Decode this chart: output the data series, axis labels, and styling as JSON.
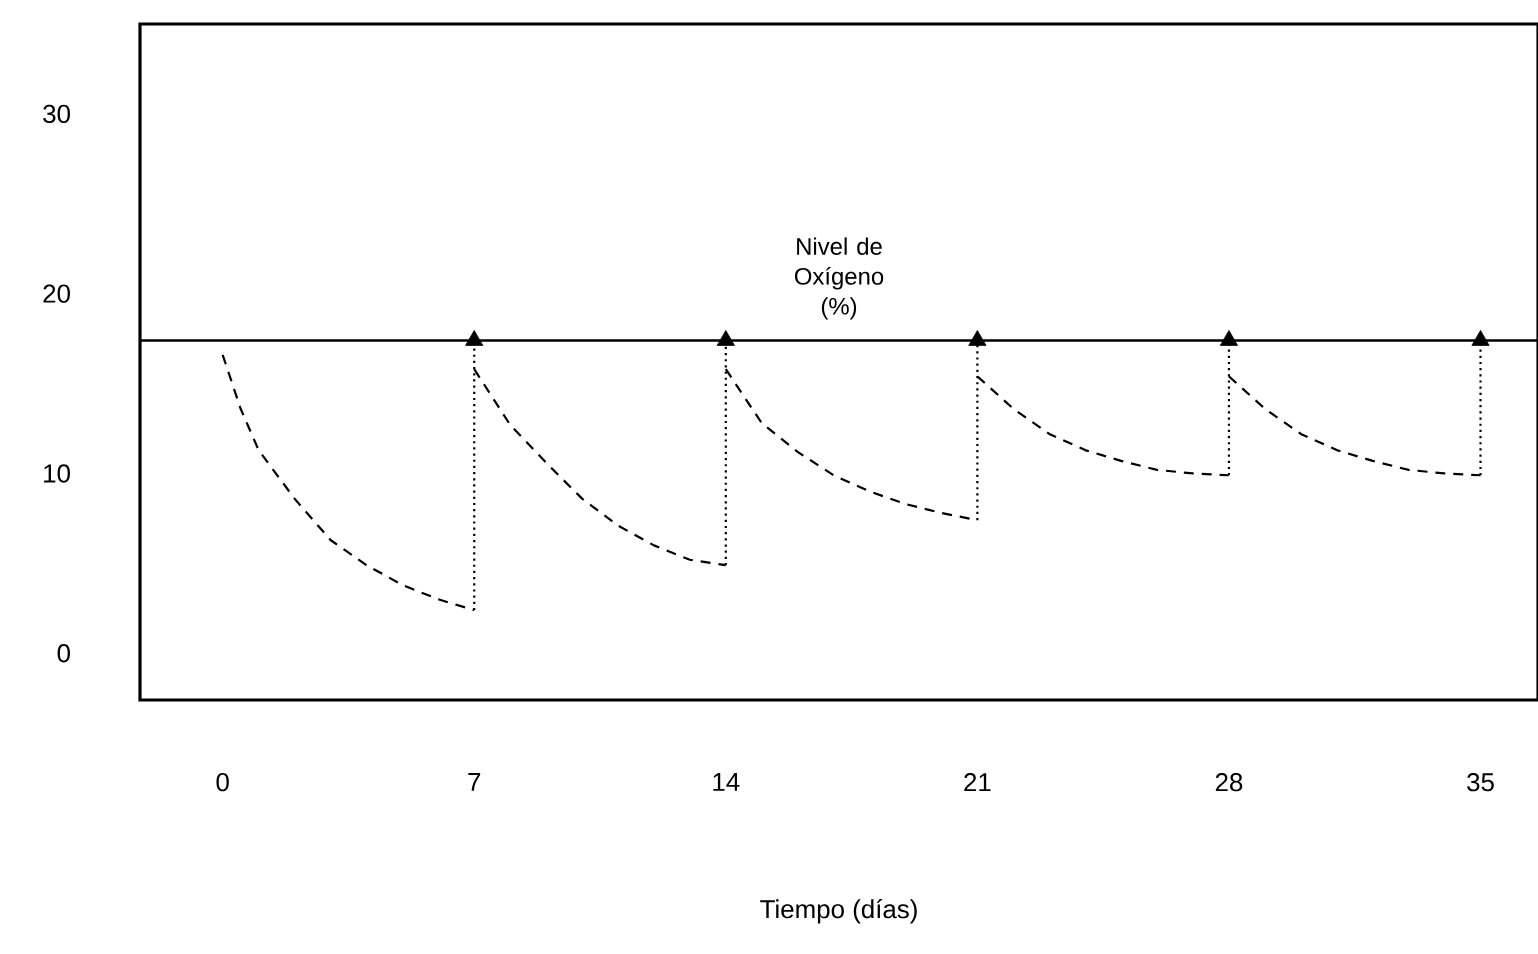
{
  "chart_data": {
    "type": "line",
    "xlabel": "Tiempo (días)",
    "xlim": [
      -2.3,
      36.6
    ],
    "xticks": [
      0,
      7,
      14,
      21,
      28,
      35
    ],
    "ylim": [
      -2.6,
      35
    ],
    "yticks": [
      0,
      10,
      20,
      30
    ],
    "series": [
      {
        "color": "#000000",
        "line_style": "dashed",
        "marker": "none",
        "x": [
          0,
          0.5,
          1,
          2,
          3,
          4,
          5,
          6,
          7,
          null,
          7,
          8,
          9,
          10,
          11,
          12,
          13,
          14,
          null,
          14,
          15,
          16,
          17,
          18,
          19,
          20,
          21,
          null,
          21,
          22,
          23,
          24,
          25,
          26,
          27,
          28,
          null,
          28,
          29,
          30,
          31,
          32,
          33,
          34,
          35
        ],
        "values": [
          16.6,
          13.6,
          11.3,
          8.6,
          6.3,
          4.9,
          3.8,
          3.0,
          2.4,
          null,
          15.8,
          12.7,
          10.6,
          8.6,
          7.1,
          6.0,
          5.2,
          4.9,
          null,
          15.8,
          12.8,
          11.2,
          9.9,
          9.0,
          8.3,
          7.8,
          7.4,
          null,
          15.4,
          13.6,
          12.2,
          11.3,
          10.7,
          10.2,
          10.0,
          9.9,
          null,
          15.4,
          13.6,
          12.2,
          11.3,
          10.7,
          10.2,
          10.0,
          9.9
        ]
      },
      {
        "color": "#000000",
        "line_style": "dotted",
        "marker": "none",
        "x": [
          7,
          7,
          null,
          14,
          14,
          null,
          21,
          21,
          null,
          28,
          28,
          null,
          35,
          35
        ],
        "values": [
          2.4,
          17.4,
          null,
          4.9,
          17.4,
          null,
          7.4,
          17.4,
          null,
          9.9,
          17.4,
          null,
          9.9,
          17.4
        ]
      },
      {
        "type": "scatter",
        "color": "#000000",
        "marker": "triangle",
        "x": [
          7,
          14,
          21,
          28,
          35
        ],
        "values": [
          17.4,
          17.4,
          17.4,
          17.4,
          17.4
        ]
      }
    ],
    "ref_lines": [
      {
        "axis": "y",
        "value": 17.4,
        "label": "Nivel de Oxígeno (%)",
        "color": "#000000",
        "line_style": "solid"
      }
    ],
    "grid": false
  }
}
